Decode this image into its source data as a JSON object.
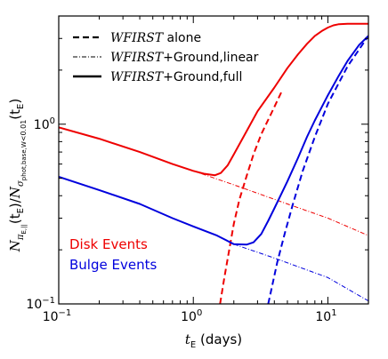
{
  "chart_data": {
    "type": "line",
    "xscale": "log",
    "yscale": "log",
    "xlim": [
      0.1,
      20
    ],
    "ylim": [
      0.1,
      4
    ],
    "grid": false,
    "xlabel": {
      "main": "t",
      "sub": "E",
      "unit": " (days)"
    },
    "ylabel": {
      "n1": "N",
      "s1": "π",
      "ss1": "E,||",
      "arg1": "(t",
      "argsub1": "E",
      "argclose1": ")",
      "slash": "/",
      "n2": "N",
      "s2": "σ",
      "ss2": "phot,base,W",
      "lt": "<0.01",
      "arg2": "(t",
      "argsub2": "E",
      "argclose2": ")"
    },
    "x_ticks": [
      {
        "value": 0.1,
        "base": "10",
        "exp": "−1"
      },
      {
        "value": 1,
        "base": "10",
        "exp": "0"
      },
      {
        "value": 10,
        "base": "10",
        "exp": "1"
      }
    ],
    "y_ticks": [
      {
        "value": 0.1,
        "base": "10",
        "exp": "−1"
      },
      {
        "value": 1,
        "base": "10",
        "exp": "0"
      }
    ],
    "legend": {
      "placement": "top-left",
      "entries": [
        {
          "style": "dashed",
          "italic": "WFIRST",
          "text": " alone"
        },
        {
          "style": "dashdot",
          "italic": "WFIRST",
          "text": "+Ground,linear"
        },
        {
          "style": "solid",
          "italic": "WFIRST",
          "text": "+Ground,full"
        }
      ]
    },
    "annotations": [
      {
        "text": "Disk Events",
        "color": "#ee0000"
      },
      {
        "text": "Bulge Events",
        "color": "#0000dd"
      }
    ],
    "series": [
      {
        "group": "disk",
        "style": "solid",
        "color": "#ee0000",
        "width": 2,
        "points": [
          [
            0.1,
            0.96
          ],
          [
            0.2,
            0.83
          ],
          [
            0.4,
            0.7
          ],
          [
            0.7,
            0.6
          ],
          [
            1.0,
            0.55
          ],
          [
            1.2,
            0.53
          ],
          [
            1.45,
            0.52
          ],
          [
            1.6,
            0.535
          ],
          [
            1.8,
            0.59
          ],
          [
            2.0,
            0.68
          ],
          [
            2.5,
            0.92
          ],
          [
            3,
            1.18
          ],
          [
            4,
            1.6
          ],
          [
            5,
            2.05
          ],
          [
            6,
            2.45
          ],
          [
            7,
            2.8
          ],
          [
            8,
            3.1
          ],
          [
            9,
            3.3
          ],
          [
            10,
            3.45
          ],
          [
            11,
            3.55
          ],
          [
            12,
            3.6
          ],
          [
            14,
            3.62
          ],
          [
            20,
            3.62
          ]
        ]
      },
      {
        "group": "disk",
        "style": "dashed",
        "color": "#ee0000",
        "width": 2,
        "points": [
          [
            1.58,
            0.1
          ],
          [
            1.7,
            0.14
          ],
          [
            1.85,
            0.2
          ],
          [
            2.0,
            0.28
          ],
          [
            2.2,
            0.38
          ],
          [
            2.5,
            0.52
          ],
          [
            2.8,
            0.68
          ],
          [
            3.2,
            0.88
          ],
          [
            3.8,
            1.15
          ],
          [
            4.5,
            1.5
          ]
        ]
      },
      {
        "group": "disk",
        "style": "dashdot",
        "color": "#ee0000",
        "width": 1,
        "points": [
          [
            1.0,
            0.55
          ],
          [
            2,
            0.46
          ],
          [
            5,
            0.36
          ],
          [
            10,
            0.3
          ],
          [
            20,
            0.24
          ]
        ]
      },
      {
        "group": "bulge",
        "style": "solid",
        "color": "#0000dd",
        "width": 2,
        "points": [
          [
            0.1,
            0.51
          ],
          [
            0.2,
            0.43
          ],
          [
            0.4,
            0.36
          ],
          [
            0.7,
            0.3
          ],
          [
            1.0,
            0.27
          ],
          [
            1.5,
            0.24
          ],
          [
            2.0,
            0.215
          ],
          [
            2.5,
            0.214
          ],
          [
            2.8,
            0.22
          ],
          [
            3.2,
            0.245
          ],
          [
            3.6,
            0.29
          ],
          [
            4,
            0.34
          ],
          [
            5,
            0.48
          ],
          [
            6,
            0.65
          ],
          [
            7,
            0.85
          ],
          [
            8,
            1.05
          ],
          [
            10,
            1.45
          ],
          [
            12,
            1.85
          ],
          [
            14,
            2.25
          ],
          [
            17,
            2.75
          ],
          [
            20,
            3.1
          ]
        ]
      },
      {
        "group": "bulge",
        "style": "dashed",
        "color": "#0000dd",
        "width": 2,
        "points": [
          [
            3.6,
            0.1
          ],
          [
            3.8,
            0.12
          ],
          [
            4.2,
            0.17
          ],
          [
            4.8,
            0.25
          ],
          [
            5.5,
            0.36
          ],
          [
            6.5,
            0.55
          ],
          [
            8,
            0.85
          ],
          [
            10,
            1.3
          ],
          [
            14,
            2.1
          ],
          [
            20,
            3.1
          ]
        ]
      },
      {
        "group": "bulge",
        "style": "dashdot",
        "color": "#0000dd",
        "width": 1,
        "points": [
          [
            2.0,
            0.215
          ],
          [
            4,
            0.18
          ],
          [
            10,
            0.14
          ],
          [
            20,
            0.104
          ]
        ]
      }
    ]
  }
}
